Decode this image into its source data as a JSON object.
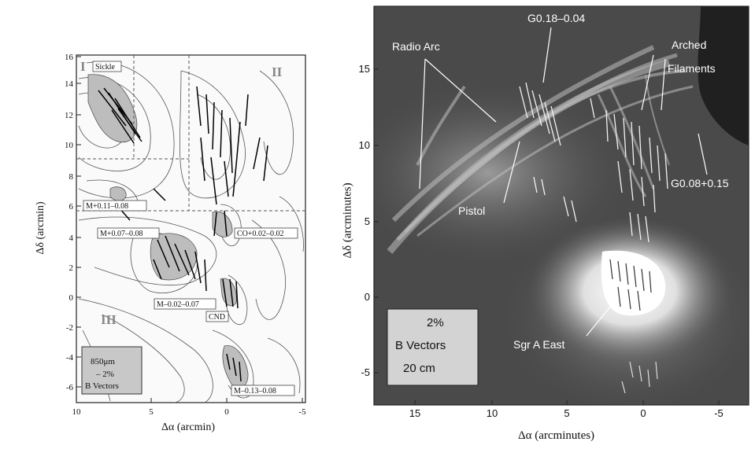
{
  "left_panel": {
    "x_axis_label": "Δα (arcmin)",
    "y_axis_label": "Δδ (arcmin)",
    "x_ticks": [
      "10",
      "5",
      "0",
      "-5"
    ],
    "y_ticks": [
      "16",
      "14",
      "12",
      "10",
      "8",
      "6",
      "4",
      "2",
      "0",
      "-2",
      "-4",
      "-6"
    ],
    "quadrants": [
      "I",
      "II",
      "III"
    ],
    "labels": {
      "sickle": "Sickle",
      "m011": "M+0.11–0.08",
      "m007": "M+0.07–0.08",
      "co": "CO+0.02–0.02",
      "m002": "M–0.02–0.07",
      "cnd": "CND",
      "m013": "M–0.13–0.08"
    },
    "legend": [
      "850μm",
      "– 2%",
      "B Vectors"
    ]
  },
  "right_panel": {
    "x_axis_label": "Δα (arcminutes)",
    "y_axis_label": "Δδ (arcminutes)",
    "x_ticks": [
      "15",
      "10",
      "5",
      "0",
      "-5"
    ],
    "y_ticks": [
      "15",
      "10",
      "5",
      "0",
      "-5"
    ],
    "labels": {
      "radio_arc": "Radio Arc",
      "g018": "G0.18–0.04",
      "arched_1": "Arched",
      "arched_2": "Filaments",
      "g008": "G0.08+0.15",
      "pistol": "Pistol",
      "sgr": "Sgr A East"
    },
    "legend": [
      "2%",
      "B Vectors",
      "20 cm"
    ]
  }
}
